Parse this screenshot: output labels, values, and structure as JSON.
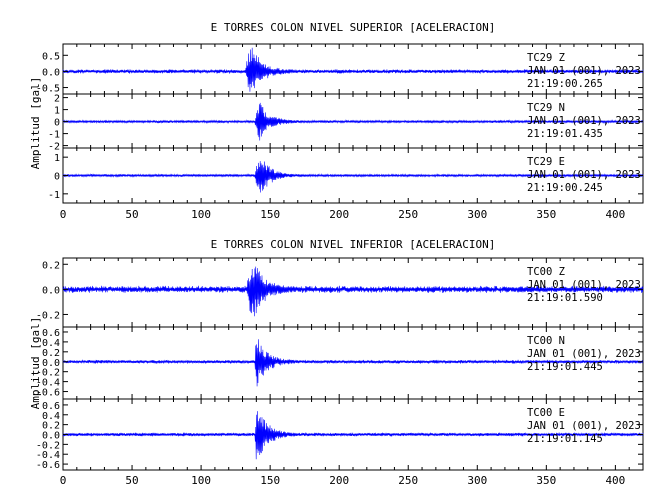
{
  "chart_data": [
    {
      "type": "line",
      "title": "E TORRES COLON NIVEL SUPERIOR [ACELERACION]",
      "ylabel": "Amplitud [gal]",
      "xlabel": "",
      "xlim": [
        0,
        420
      ],
      "xticks": [
        "0",
        "50",
        "100",
        "150",
        "200",
        "250",
        "300",
        "350",
        "400"
      ],
      "color": "#0000ff",
      "grid": false,
      "panels": [
        {
          "station": "TC29",
          "component": "Z",
          "date": "JAN 01 (001), 2023",
          "time": "21:19:00.265",
          "ylim": [
            -0.7,
            0.85
          ],
          "yticks": [
            "0.5",
            "0.0",
            "-0.5"
          ],
          "onset_s": 132,
          "peak_s": 136,
          "peak_amplitude": 0.85,
          "noise_amplitude": 0.07
        },
        {
          "station": "TC29",
          "component": "N",
          "date": "JAN 01 (001), 2023",
          "time": "21:19:01.435",
          "ylim": [
            -2.2,
            2.3
          ],
          "yticks": [
            "2",
            "1",
            "0",
            "-1",
            "-2"
          ],
          "onset_s": 139,
          "peak_s": 142,
          "peak_amplitude": 1.6,
          "noise_amplitude": 0.12
        },
        {
          "station": "TC29",
          "component": "E",
          "date": "JAN 01 (001), 2023",
          "time": "21:19:00.245",
          "ylim": [
            -1.5,
            1.5
          ],
          "yticks": [
            "1",
            "0",
            "-1"
          ],
          "onset_s": 139,
          "peak_s": 142,
          "peak_amplitude": 1.2,
          "noise_amplitude": 0.08
        }
      ]
    },
    {
      "type": "line",
      "title": "E TORRES COLON NIVEL INFERIOR [ACELERACION]",
      "ylabel": "Amplitud [gal]",
      "xlabel": "",
      "xlim": [
        0,
        420
      ],
      "xticks": [
        "0",
        "50",
        "100",
        "150",
        "200",
        "250",
        "300",
        "350",
        "400"
      ],
      "color": "#0000ff",
      "grid": false,
      "panels": [
        {
          "station": "TC00",
          "component": "Z",
          "date": "JAN 01 (001), 2023",
          "time": "21:19:01.590",
          "ylim": [
            -0.3,
            0.25
          ],
          "yticks": [
            "0.2",
            "0.0",
            "-0.2"
          ],
          "onset_s": 133,
          "peak_s": 137,
          "peak_amplitude": 0.24,
          "noise_amplitude": 0.03
        },
        {
          "station": "TC00",
          "component": "N",
          "date": "JAN 01 (001), 2023",
          "time": "21:19:01.445",
          "ylim": [
            -0.75,
            0.7
          ],
          "yticks": [
            "0.6",
            "0.4",
            "0.2",
            "0.0",
            "-0.2",
            "-0.4",
            "-0.6"
          ],
          "onset_s": 139,
          "peak_s": 140,
          "peak_amplitude": 0.5,
          "noise_amplitude": 0.04
        },
        {
          "station": "TC00",
          "component": "E",
          "date": "JAN 01 (001), 2023",
          "time": "21:19:01.145",
          "ylim": [
            -0.72,
            0.72
          ],
          "yticks": [
            "0.6",
            "0.4",
            "0.2",
            "0.0",
            "-0.2",
            "-0.4",
            "-0.6"
          ],
          "onset_s": 139,
          "peak_s": 140,
          "peak_amplitude": 0.6,
          "noise_amplitude": 0.04
        }
      ]
    }
  ]
}
